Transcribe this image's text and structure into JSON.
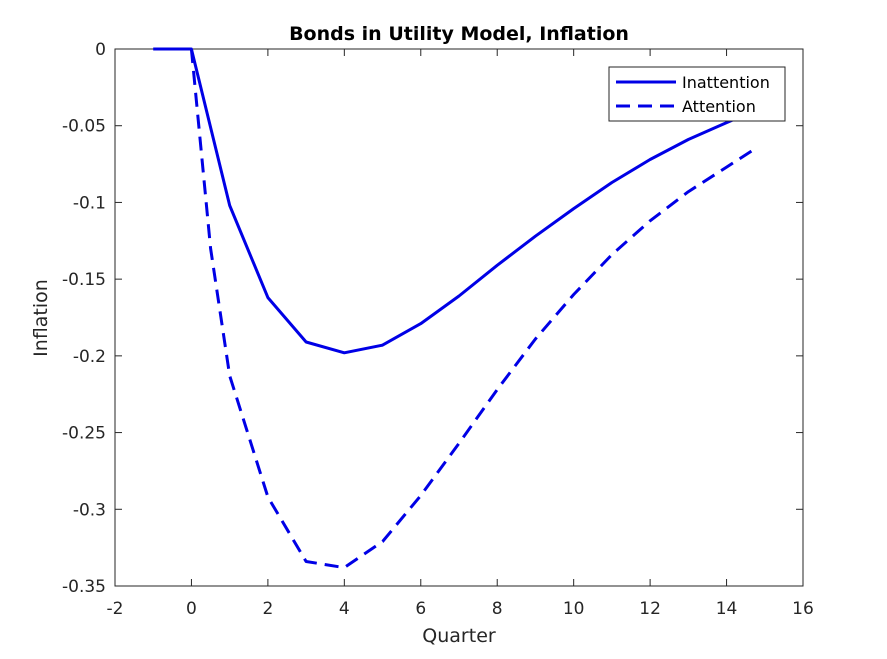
{
  "chart_data": {
    "type": "line",
    "title": "Bonds in Utility Model, Inflation",
    "xlabel": "Quarter",
    "ylabel": "Inflation",
    "xlim": [
      -2,
      16
    ],
    "ylim": [
      -0.35,
      0
    ],
    "xticks": [
      -2,
      0,
      2,
      4,
      6,
      8,
      10,
      12,
      14,
      16
    ],
    "xtick_labels": [
      "-2",
      "0",
      "2",
      "4",
      "6",
      "8",
      "10",
      "12",
      "14",
      "16"
    ],
    "yticks": [
      0,
      -0.05,
      -0.1,
      -0.15,
      -0.2,
      -0.25,
      -0.3,
      -0.35
    ],
    "ytick_labels": [
      "0",
      "-0.05",
      "-0.1",
      "-0.15",
      "-0.2",
      "-0.25",
      "-0.3",
      "-0.35"
    ],
    "grid": false,
    "legend_position": "top-right",
    "colors": {
      "series": "#0000e6",
      "axes": "#262626"
    },
    "series": [
      {
        "name": "Inattention",
        "style": "solid",
        "points": [
          [
            -1,
            0
          ],
          [
            0,
            0
          ],
          [
            1,
            -0.102
          ],
          [
            2,
            -0.162
          ],
          [
            3,
            -0.191
          ],
          [
            4,
            -0.198
          ],
          [
            5,
            -0.193
          ],
          [
            6,
            -0.179
          ],
          [
            7,
            -0.161
          ],
          [
            8,
            -0.141
          ],
          [
            9,
            -0.122
          ],
          [
            10,
            -0.104
          ],
          [
            11,
            -0.087
          ],
          [
            12,
            -0.072
          ],
          [
            13,
            -0.059
          ],
          [
            14,
            -0.048
          ],
          [
            14.75,
            -0.04
          ]
        ]
      },
      {
        "name": "Attention",
        "style": "dashed",
        "points": [
          [
            0,
            0
          ],
          [
            0.5,
            -0.13
          ],
          [
            1,
            -0.213
          ],
          [
            2,
            -0.292
          ],
          [
            3,
            -0.334
          ],
          [
            4,
            -0.338
          ],
          [
            5,
            -0.321
          ],
          [
            6,
            -0.291
          ],
          [
            7,
            -0.257
          ],
          [
            8,
            -0.222
          ],
          [
            9,
            -0.189
          ],
          [
            10,
            -0.16
          ],
          [
            11,
            -0.134
          ],
          [
            12,
            -0.112
          ],
          [
            13,
            -0.093
          ],
          [
            14,
            -0.077
          ],
          [
            14.75,
            -0.065
          ]
        ]
      }
    ]
  }
}
